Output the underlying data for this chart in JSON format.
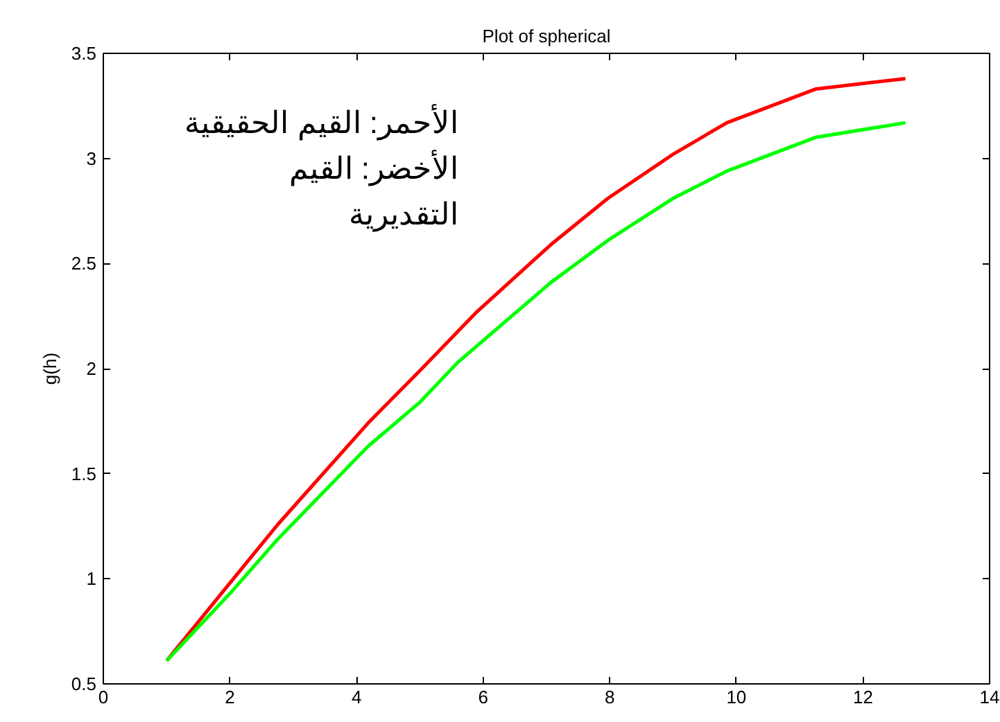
{
  "chart_data": {
    "type": "line",
    "title": "Plot of spherical",
    "ylabel": "g(h)",
    "annotations": [
      "الأحمر: القيم الحقيقية",
      "الأخضر: القيم",
      "التقديرية"
    ],
    "series": [
      {
        "color": "#ff0000",
        "x": [
          1,
          2,
          2.76,
          4.18,
          5,
          5.9,
          7.07,
          7.97,
          9,
          9.85,
          11.25,
          12.67
        ],
        "values": [
          0.61,
          0.98,
          1.26,
          1.74,
          1.99,
          2.27,
          2.59,
          2.81,
          3.02,
          3.17,
          3.33,
          3.38
        ]
      },
      {
        "color": "#00ff00",
        "x": [
          1,
          2,
          2.76,
          4.18,
          5,
          5.6,
          7.07,
          7.97,
          9,
          9.85,
          11.25,
          12.67
        ],
        "values": [
          0.61,
          0.93,
          1.19,
          1.63,
          1.84,
          2.03,
          2.41,
          2.61,
          2.81,
          2.94,
          3.1,
          3.17
        ]
      }
    ],
    "xlim": [
      0,
      14
    ],
    "xticks": [
      0,
      2,
      4,
      6,
      8,
      10,
      12,
      14
    ],
    "ylim": [
      0.5,
      3.5
    ],
    "yticks": [
      0.5,
      1,
      1.5,
      2,
      2.5,
      3,
      3.5
    ],
    "grid": false
  }
}
